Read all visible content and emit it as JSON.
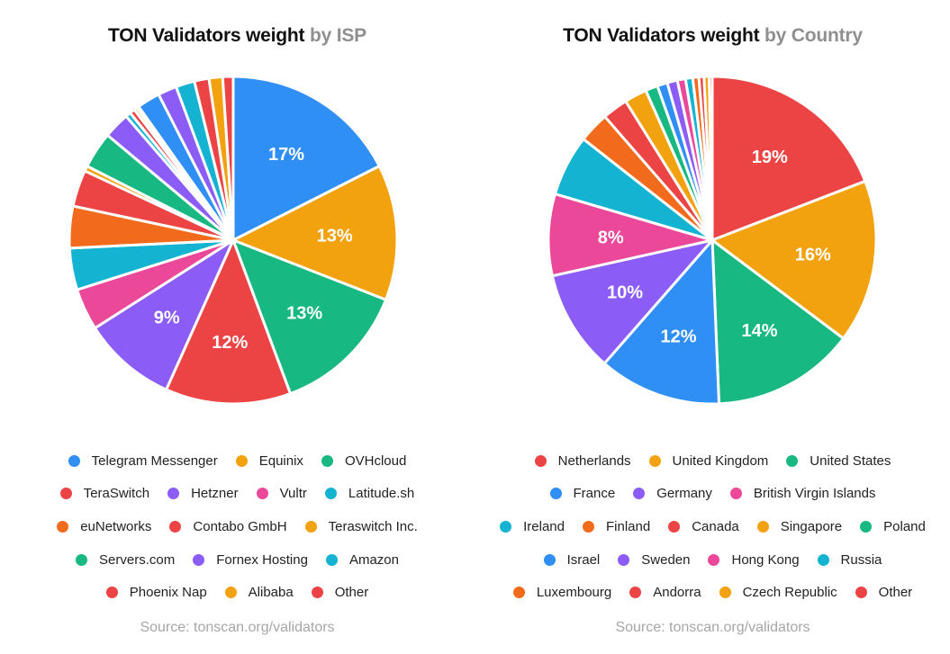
{
  "colors": {
    "blue": "#2f8ff4",
    "orange": "#f2a20f",
    "green": "#17b882",
    "red": "#ec4444",
    "purple": "#8b5cf6",
    "pink": "#ec4899",
    "cyan": "#14b3d1",
    "deep_orange": "#f26b1d"
  },
  "chart_data": [
    {
      "type": "pie",
      "title": "TON Validators weight",
      "subtitle": "by ISP",
      "source": "Source: tonscan.org/validators",
      "labels_shown": [
        "17%",
        "13%",
        "13%",
        "12%",
        "9%"
      ],
      "slices": [
        {
          "name": "Telegram Messenger",
          "value": 17,
          "color": "blue"
        },
        {
          "name": "Equinix",
          "value": 13,
          "color": "orange"
        },
        {
          "name": "OVHcloud",
          "value": 13,
          "color": "green"
        },
        {
          "name": "TeraSwitch",
          "value": 12,
          "color": "red"
        },
        {
          "name": "Hetzner",
          "value": 9,
          "color": "purple"
        },
        {
          "name": "Vultr",
          "value": 4,
          "color": "pink"
        },
        {
          "name": "Latitude.sh",
          "value": 4,
          "color": "cyan"
        },
        {
          "name": "euNetworks",
          "value": 4,
          "color": "deep_orange"
        },
        {
          "name": "Contabo GmbH",
          "value": 3.5,
          "color": "red"
        },
        {
          "name": "Teraswitch Inc.",
          "value": 0.5,
          "color": "orange"
        },
        {
          "name": "Servers.com",
          "value": 3.5,
          "color": "green"
        },
        {
          "name": "Fornex Hosting",
          "value": 2.5,
          "color": "purple"
        },
        {
          "name": "Amazon",
          "value": 0.5,
          "color": "cyan"
        },
        {
          "name": "Phoenix Nap",
          "value": 0.5,
          "color": "red"
        },
        {
          "name": "Alibaba",
          "value": 0.3,
          "color": "orange"
        },
        {
          "name": "Other",
          "value": 0.2,
          "color": "red"
        }
      ],
      "extra_slices": [
        {
          "value": 2.2,
          "color": "blue"
        },
        {
          "value": 1.8,
          "color": "purple"
        },
        {
          "value": 1.8,
          "color": "cyan"
        },
        {
          "value": 1.4,
          "color": "red"
        },
        {
          "value": 1.3,
          "color": "orange"
        },
        {
          "value": 1.0,
          "color": "red"
        }
      ],
      "legend_rows": [
        [
          "Telegram Messenger",
          "Equinix",
          "OVHcloud"
        ],
        [
          "TeraSwitch",
          "Hetzner",
          "Vultr",
          "Latitude.sh"
        ],
        [
          "euNetworks",
          "Contabo GmbH",
          "Teraswitch Inc."
        ],
        [
          "Servers.com",
          "Fornex Hosting",
          "Amazon"
        ],
        [
          "Phoenix Nap",
          "Alibaba",
          "Other"
        ]
      ]
    },
    {
      "type": "pie",
      "title": "TON Validators weight",
      "subtitle": "by Country",
      "source": "Source: tonscan.org/validators",
      "labels_shown": [
        "19%",
        "16%",
        "14%",
        "12%",
        "10%",
        "8%"
      ],
      "slices": [
        {
          "name": "Netherlands",
          "value": 19,
          "color": "red"
        },
        {
          "name": "United Kingdom",
          "value": 16,
          "color": "orange"
        },
        {
          "name": "United States",
          "value": 14,
          "color": "green"
        },
        {
          "name": "France",
          "value": 12,
          "color": "blue"
        },
        {
          "name": "Germany",
          "value": 10,
          "color": "purple"
        },
        {
          "name": "British Virgin Islands",
          "value": 8,
          "color": "pink"
        },
        {
          "name": "Ireland",
          "value": 6,
          "color": "cyan"
        },
        {
          "name": "Finland",
          "value": 3,
          "color": "deep_orange"
        },
        {
          "name": "Canada",
          "value": 2.5,
          "color": "red"
        },
        {
          "name": "Singapore",
          "value": 2.2,
          "color": "orange"
        },
        {
          "name": "Poland",
          "value": 1.2,
          "color": "green"
        },
        {
          "name": "Israel",
          "value": 1.0,
          "color": "blue"
        },
        {
          "name": "Sweden",
          "value": 1.0,
          "color": "purple"
        },
        {
          "name": "Hong Kong",
          "value": 0.8,
          "color": "pink"
        },
        {
          "name": "Russia",
          "value": 0.7,
          "color": "cyan"
        },
        {
          "name": "Luxembourg",
          "value": 0.6,
          "color": "deep_orange"
        },
        {
          "name": "Andorra",
          "value": 0.5,
          "color": "red"
        },
        {
          "name": "Czech Republic",
          "value": 0.5,
          "color": "orange"
        },
        {
          "name": "Other",
          "value": 0.3,
          "color": "red"
        }
      ],
      "legend_rows": [
        [
          "Netherlands",
          "United Kingdom",
          "United States"
        ],
        [
          "France",
          "Germany",
          "British Virgin Islands"
        ],
        [
          "Ireland",
          "Finland",
          "Canada",
          "Singapore",
          "Poland"
        ],
        [
          "Israel",
          "Sweden",
          "Hong Kong",
          "Russia"
        ],
        [
          "Luxembourg",
          "Andorra",
          "Czech Republic",
          "Other"
        ]
      ]
    }
  ]
}
